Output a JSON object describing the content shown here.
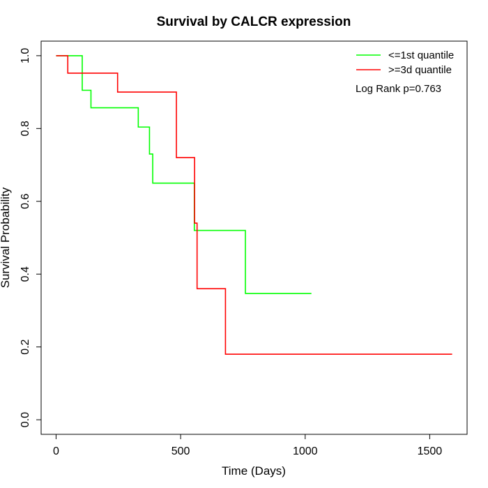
{
  "chart_data": {
    "type": "line",
    "step": true,
    "title": "Survival by CALCR expression",
    "xlabel": "Time (Days)",
    "ylabel": "Survival Probability",
    "xlim": [
      -60,
      1650
    ],
    "ylim": [
      -0.04,
      1.04
    ],
    "x_ticks": [
      0,
      500,
      1000,
      1500
    ],
    "x_tick_labels": [
      "0",
      "500",
      "1000",
      "1500"
    ],
    "y_ticks": [
      0.0,
      0.2,
      0.4,
      0.6,
      0.8,
      1.0
    ],
    "y_tick_labels": [
      "0.0",
      "0.2",
      "0.4",
      "0.6",
      "0.8",
      "1.0"
    ],
    "legend_position": "top-right",
    "annotation": "Log Rank p=0.763",
    "series": [
      {
        "name": "<=1st quantile",
        "color": "#00ff00",
        "points": [
          [
            0,
            1.0
          ],
          [
            105,
            1.0
          ],
          [
            105,
            0.905
          ],
          [
            140,
            0.905
          ],
          [
            140,
            0.857
          ],
          [
            330,
            0.857
          ],
          [
            330,
            0.804
          ],
          [
            375,
            0.804
          ],
          [
            375,
            0.73
          ],
          [
            388,
            0.73
          ],
          [
            388,
            0.65
          ],
          [
            555,
            0.65
          ],
          [
            555,
            0.52
          ],
          [
            760,
            0.52
          ],
          [
            760,
            0.347
          ],
          [
            1025,
            0.347
          ]
        ]
      },
      {
        "name": ">=3d quantile",
        "color": "#ff0000",
        "points": [
          [
            0,
            1.0
          ],
          [
            47,
            1.0
          ],
          [
            47,
            0.952
          ],
          [
            247,
            0.952
          ],
          [
            247,
            0.9
          ],
          [
            483,
            0.9
          ],
          [
            483,
            0.72
          ],
          [
            556,
            0.72
          ],
          [
            556,
            0.54
          ],
          [
            566,
            0.54
          ],
          [
            566,
            0.36
          ],
          [
            680,
            0.36
          ],
          [
            680,
            0.18
          ],
          [
            1590,
            0.18
          ]
        ]
      }
    ]
  }
}
